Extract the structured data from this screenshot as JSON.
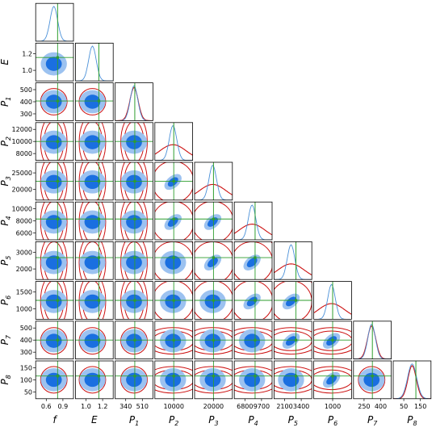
{
  "chart_data": {
    "type": "corner",
    "parameters": [
      {
        "name": "f",
        "sub": ""
      },
      {
        "name": "E",
        "sub": ""
      },
      {
        "name": "P",
        "sub": "1"
      },
      {
        "name": "P",
        "sub": "2"
      },
      {
        "name": "P",
        "sub": "3"
      },
      {
        "name": "P",
        "sub": "4"
      },
      {
        "name": "P",
        "sub": "5"
      },
      {
        "name": "P",
        "sub": "6"
      },
      {
        "name": "P",
        "sub": "7"
      },
      {
        "name": "P",
        "sub": "8"
      }
    ],
    "x_tick_labels": [
      [
        "0.6",
        "0.9"
      ],
      [
        "1.0",
        "1.2"
      ],
      [
        "340",
        "510"
      ],
      [
        "10000"
      ],
      [
        "20000"
      ],
      [
        "6800",
        "9700"
      ],
      [
        "2100",
        "3400"
      ],
      [
        "1000"
      ],
      [
        "250",
        "400"
      ],
      [
        "50",
        "150"
      ]
    ],
    "y_tick_labels": [
      [],
      [
        "1.2",
        "1.0"
      ],
      [
        "500",
        "400",
        "300"
      ],
      [
        "12000",
        "10000",
        "8000"
      ],
      [
        "25000",
        "20000"
      ],
      [
        "10000",
        "8000",
        "6000"
      ],
      [
        "3000",
        "2000"
      ],
      [
        "1500",
        "1000"
      ],
      [
        "500",
        "400",
        "300"
      ],
      [
        "150",
        "100",
        "50"
      ]
    ],
    "colors": {
      "inner_contour": "#1a6fe0",
      "outer_contour": "#9cc2f0",
      "hist_blue": "#4a90d8",
      "prior_red": "#cc1111",
      "truth_green": "#2e9e2e"
    },
    "legend": "none",
    "grid": false
  }
}
